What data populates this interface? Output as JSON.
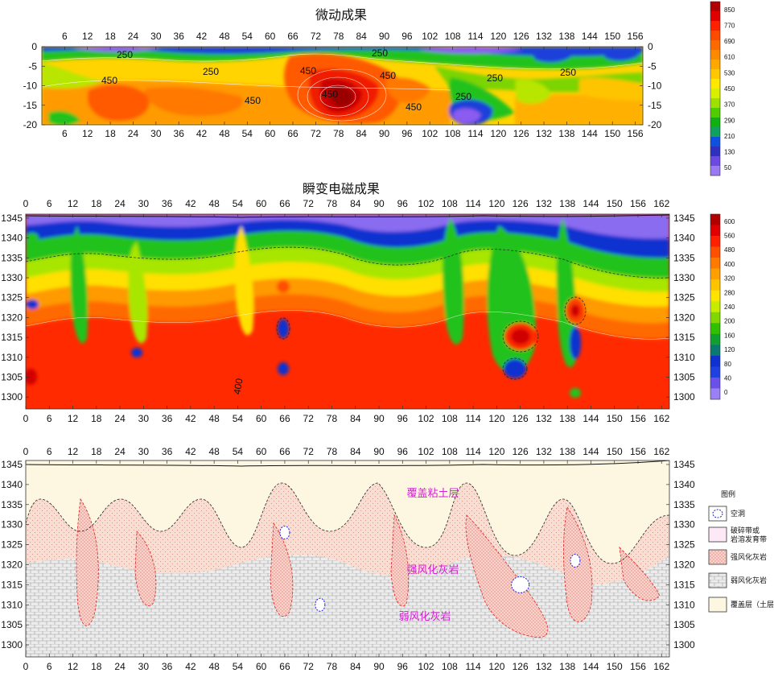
{
  "chart_data": [
    {
      "type": "heatmap",
      "title": "微动成果",
      "x_ticks": [
        6,
        12,
        18,
        24,
        30,
        36,
        42,
        48,
        54,
        60,
        66,
        72,
        78,
        84,
        90,
        96,
        102,
        108,
        114,
        120,
        126,
        132,
        138,
        144,
        150,
        156
      ],
      "xlim": [
        0,
        158
      ],
      "y_ticks": [
        0,
        -5,
        -10,
        -15,
        -20
      ],
      "ylim": [
        -20,
        0
      ],
      "colorbar_ticks": [
        850,
        770,
        690,
        610,
        530,
        450,
        370,
        290,
        210,
        130,
        50
      ],
      "contour_labels": [
        "250",
        "250",
        "250",
        "250",
        "250",
        "250",
        "450",
        "450",
        "450",
        "450",
        "450",
        "450",
        "650"
      ],
      "features": [
        {
          "x": 79,
          "y": -12,
          "value": 850
        },
        {
          "x": 27,
          "y": -17,
          "value": 600
        },
        {
          "x": 68,
          "y": -14,
          "value": 560
        },
        {
          "x": 100,
          "y": -10,
          "value": 520
        },
        {
          "x": 14,
          "y": -3,
          "value": 170
        },
        {
          "x": 50,
          "y": -2,
          "value": 160
        },
        {
          "x": 110,
          "y": -3,
          "value": 130
        },
        {
          "x": 113,
          "y": -17,
          "value": 120
        },
        {
          "x": 140,
          "y": -5,
          "value": 150
        },
        {
          "x": 60,
          "y": -10,
          "value": 440
        },
        {
          "x": 40,
          "y": -15,
          "value": 430
        },
        {
          "x": 150,
          "y": -15,
          "value": 420
        }
      ]
    },
    {
      "type": "heatmap",
      "title": "瞬变电磁成果",
      "x_ticks": [
        0,
        6,
        12,
        18,
        24,
        30,
        36,
        42,
        48,
        54,
        60,
        66,
        72,
        78,
        84,
        90,
        96,
        102,
        108,
        114,
        120,
        126,
        132,
        138,
        144,
        150,
        156,
        162
      ],
      "xlim": [
        0,
        164
      ],
      "y_ticks": [
        1345,
        1340,
        1335,
        1330,
        1325,
        1320,
        1315,
        1310,
        1305,
        1300
      ],
      "ylim": [
        1297,
        1346
      ],
      "colorbar_ticks": [
        600,
        560,
        480,
        400,
        320,
        280,
        240,
        200,
        160,
        120,
        80,
        40,
        0
      ],
      "contour_labels": [
        "400"
      ],
      "features": [
        {
          "x": 126,
          "y": 1315,
          "value": 560
        },
        {
          "x": 140,
          "y": 1321,
          "value": 480
        },
        {
          "x": 66,
          "y": 1327,
          "value": 420
        },
        {
          "x": 1,
          "y": 1305,
          "value": 480
        },
        {
          "x": 66,
          "y": 1316,
          "value": 40
        },
        {
          "x": 140,
          "y": 1315,
          "value": 40
        },
        {
          "x": 125,
          "y": 1307,
          "value": 60
        },
        {
          "x": 66,
          "y": 1306,
          "value": 80
        },
        {
          "x": 28,
          "y": 1311,
          "value": 60
        },
        {
          "x": 140,
          "y": 1301,
          "value": 80
        }
      ]
    },
    {
      "type": "other",
      "title": "",
      "x_ticks": [
        0,
        6,
        12,
        18,
        24,
        30,
        36,
        42,
        48,
        54,
        60,
        66,
        72,
        78,
        84,
        90,
        96,
        102,
        108,
        114,
        120,
        126,
        132,
        138,
        144,
        150,
        156,
        162
      ],
      "xlim": [
        0,
        164
      ],
      "y_ticks": [
        1345,
        1340,
        1335,
        1330,
        1325,
        1320,
        1315,
        1310,
        1305,
        1300
      ],
      "ylim": [
        1297,
        1346
      ],
      "zone_labels": [
        "覆盖粘土层",
        "强风化灰岩",
        "弱风化灰岩"
      ],
      "legend": {
        "title": "图例",
        "items": [
          {
            "label": "空洞",
            "swatch": "cave"
          },
          {
            "label": "破碎带或岩溶发育带",
            "swatch": "fracture"
          },
          {
            "label": "强风化灰岩",
            "swatch": "strong"
          },
          {
            "label": "弱风化灰岩",
            "swatch": "weak"
          },
          {
            "label": "覆盖层（土层）",
            "swatch": "cover"
          }
        ]
      },
      "caves": [
        {
          "x": 66,
          "y": 1328
        },
        {
          "x": 75,
          "y": 1310
        },
        {
          "x": 126,
          "y": 1315
        },
        {
          "x": 140,
          "y": 1321
        }
      ]
    }
  ],
  "legend_labels": {
    "cave": "空洞",
    "fracture_line1": "破碎带或",
    "fracture_line2": "岩溶发育带",
    "strong": "强风化灰岩",
    "weak": "弱风化灰岩",
    "cover": "覆盖层（土层）"
  }
}
